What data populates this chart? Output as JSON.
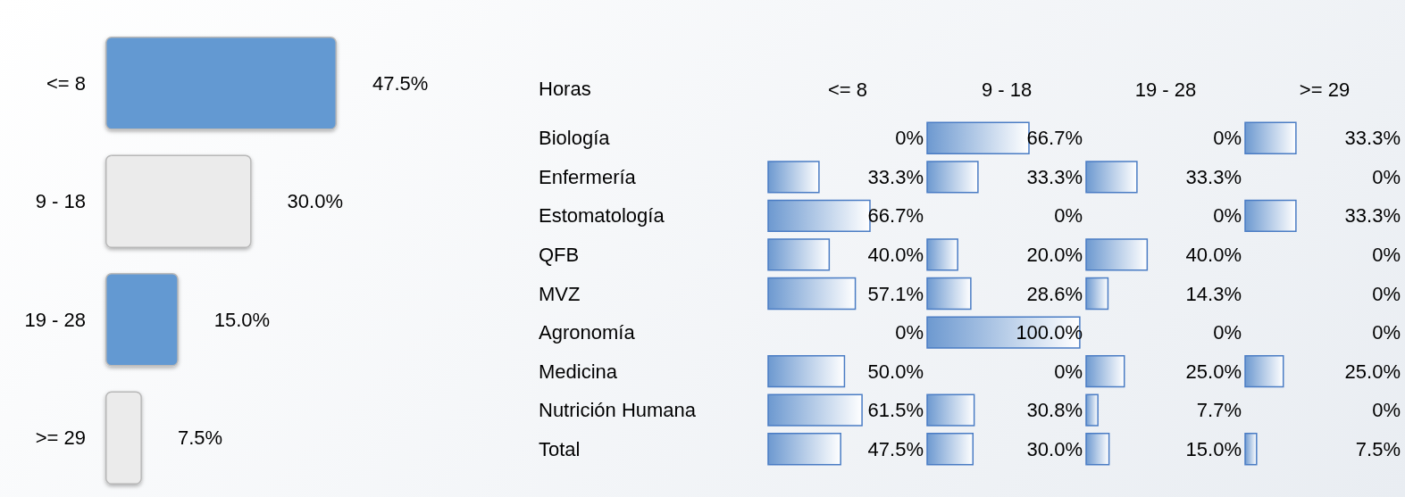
{
  "chart_data": [
    {
      "type": "bar",
      "orientation": "horizontal",
      "categories": [
        "<= 8",
        "9 - 18",
        "19 - 28",
        ">= 29"
      ],
      "values": [
        47.5,
        30.0,
        15.0,
        7.5
      ],
      "colors": [
        "#6499d2",
        "#ebebeb",
        "#6499d2",
        "#ebebeb"
      ],
      "value_labels": [
        "47.5%",
        "30.0%",
        "15.0%",
        "7.5%"
      ]
    },
    {
      "type": "heatmap",
      "ylabel": "Horas",
      "color": "#6d99d0",
      "categories": [
        "<= 8",
        "9 - 18",
        "19 - 28",
        ">= 29"
      ],
      "y_categories": [
        "Biología",
        "Enfermería",
        "Estomatología",
        "QFB",
        "MVZ",
        "Agronomía",
        "Medicina",
        "Nutrición Humana",
        "Total"
      ],
      "cells": [
        [
          0,
          66.7,
          0,
          33.3
        ],
        [
          33.3,
          33.3,
          33.3,
          0
        ],
        [
          66.7,
          0,
          0,
          33.3
        ],
        [
          40.0,
          20.0,
          40.0,
          0
        ],
        [
          57.1,
          28.6,
          14.3,
          0
        ],
        [
          0,
          100.0,
          0,
          0
        ],
        [
          50.0,
          0,
          25.0,
          25.0
        ],
        [
          61.5,
          30.8,
          7.7,
          0
        ],
        [
          47.5,
          30.0,
          15.0,
          7.5
        ]
      ],
      "cell_labels": [
        [
          "0%",
          "66.7%",
          "0%",
          "33.3%"
        ],
        [
          "33.3%",
          "33.3%",
          "33.3%",
          "0%"
        ],
        [
          "66.7%",
          "0%",
          "0%",
          "33.3%"
        ],
        [
          "40.0%",
          "20.0%",
          "40.0%",
          "0%"
        ],
        [
          "57.1%",
          "28.6%",
          "14.3%",
          "0%"
        ],
        [
          "0%",
          "100.0%",
          "0%",
          "0%"
        ],
        [
          "50.0%",
          "0%",
          "25.0%",
          "25.0%"
        ],
        [
          "61.5%",
          "30.8%",
          "7.7%",
          "0%"
        ],
        [
          "47.5%",
          "30.0%",
          "15.0%",
          "7.5%"
        ]
      ]
    }
  ]
}
